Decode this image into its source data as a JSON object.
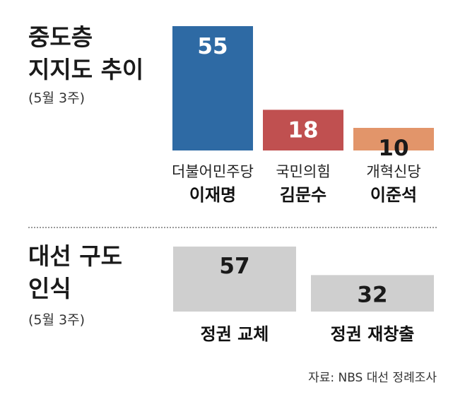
{
  "chart_data": [
    {
      "type": "bar",
      "title": "중도층\n지지도 추이",
      "subtitle": "(5월 3주)",
      "categories": [
        "더불어민주당 이재명",
        "국민의힘 김문수",
        "개혁신당 이준석"
      ],
      "parties": [
        "더불어민주당",
        "국민의힘",
        "개혁신당"
      ],
      "candidates": [
        "이재명",
        "김문수",
        "이준석"
      ],
      "values": [
        55,
        18,
        10
      ],
      "value_labels": [
        "55",
        "18",
        "10"
      ],
      "colors": [
        "#2e6aa4",
        "#c05050",
        "#e2956a"
      ],
      "label_colors": [
        "#ffffff",
        "#ffffff",
        "#1a1a1a"
      ],
      "ylim": [
        0,
        55
      ]
    },
    {
      "type": "bar",
      "title": "대선 구도\n인식",
      "subtitle": "(5월 3주)",
      "categories": [
        "정권 교체",
        "정권 재창출"
      ],
      "values": [
        57,
        32
      ],
      "value_labels": [
        "57",
        "32"
      ],
      "colors": [
        "#cfcfcf",
        "#cfcfcf"
      ],
      "label_colors": [
        "#1a1a1a",
        "#1a1a1a"
      ],
      "ylim": [
        0,
        57
      ]
    }
  ],
  "source": "자료: NBS 대선 정례조사"
}
